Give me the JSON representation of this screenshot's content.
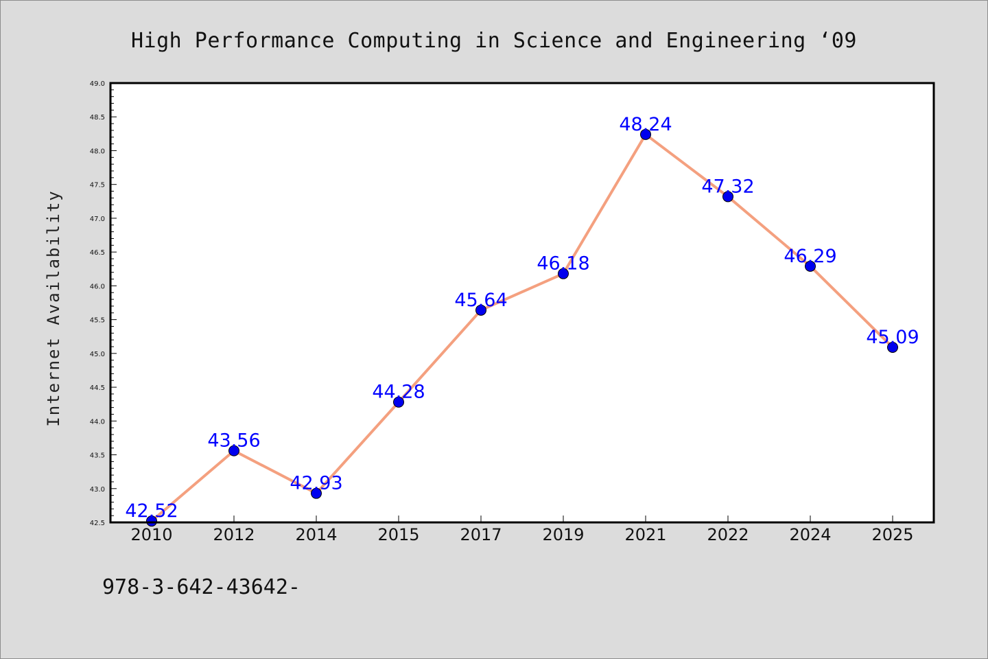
{
  "chart_data": {
    "type": "line",
    "title": "High Performance Computing in Science and Engineering  ‘09",
    "xlabel": "",
    "ylabel": "Internet Availability",
    "categories": [
      "2010",
      "2012",
      "2014",
      "2015",
      "2017",
      "2019",
      "2021",
      "2022",
      "2024",
      "2025"
    ],
    "series": [
      {
        "values": [
          42.52,
          43.56,
          42.93,
          44.28,
          45.64,
          46.18,
          48.24,
          47.32,
          46.29,
          45.09
        ],
        "line_color": "#f4a07f",
        "marker_color": "#0000ee"
      }
    ],
    "data_labels": [
      "42.52",
      "43.56",
      "42.93",
      "44.28",
      "45.64",
      "46.18",
      "48.24",
      "47.32",
      "46.29",
      "45.09"
    ],
    "ylim": [
      42.5,
      49.0
    ],
    "yticks": [
      "42.5",
      "43.0",
      "43.5",
      "44.0",
      "44.5",
      "45.0",
      "45.5",
      "46.0",
      "46.5",
      "47.0",
      "47.5",
      "48.0",
      "48.5",
      "49.0"
    ],
    "grid": false,
    "data_label_color": "#0000ff"
  },
  "footer": {
    "text": "978-3-642-43642-"
  }
}
